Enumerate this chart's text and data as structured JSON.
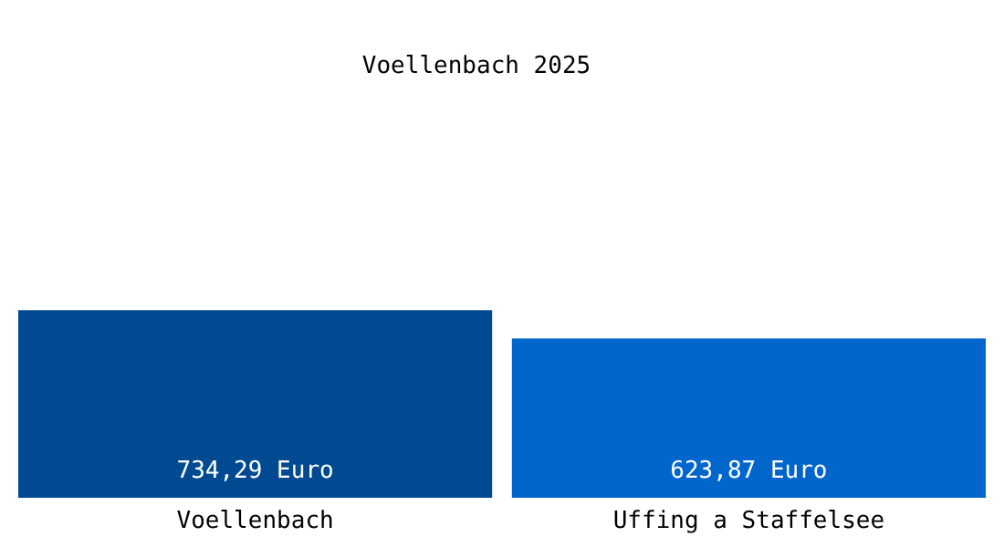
{
  "chart_data": {
    "type": "bar",
    "title": "Voellenbach 2025",
    "categories": [
      "Voellenbach",
      "Uffing a Staffelsee"
    ],
    "values": [
      734.29,
      623.87
    ],
    "colors": [
      "#004a92",
      "#0066cc"
    ],
    "value_labels": [
      "734,29 Euro",
      "623,87 Euro"
    ]
  }
}
